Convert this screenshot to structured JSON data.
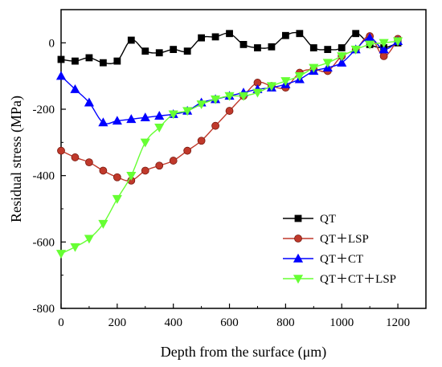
{
  "chart_data": {
    "type": "line",
    "xlabel": "Depth from the surface (μm)",
    "ylabel": "Residual stress (MPa)",
    "xlim": [
      0,
      1300
    ],
    "ylim": [
      -800,
      100
    ],
    "xticks": [
      0,
      200,
      400,
      600,
      800,
      1000,
      1200
    ],
    "yticks": [
      -800,
      -600,
      -400,
      -200,
      0
    ],
    "grid": false,
    "legend_position": "bottom-right",
    "series": [
      {
        "name": "QT",
        "color": "#000000",
        "marker": "square",
        "x": [
          0,
          50,
          100,
          150,
          200,
          250,
          300,
          350,
          400,
          450,
          500,
          550,
          600,
          650,
          700,
          750,
          800,
          850,
          900,
          950,
          1000,
          1050,
          1100,
          1150,
          1200
        ],
        "y": [
          -50,
          -55,
          -45,
          -60,
          -55,
          8,
          -25,
          -30,
          -20,
          -25,
          15,
          18,
          28,
          -5,
          -15,
          -12,
          22,
          28,
          -15,
          -20,
          -15,
          28,
          -5,
          -15,
          0
        ]
      },
      {
        "name": "QT＋LSP",
        "color": "#c0392b",
        "marker": "circle",
        "x": [
          0,
          50,
          100,
          150,
          200,
          250,
          300,
          350,
          400,
          450,
          500,
          550,
          600,
          650,
          700,
          750,
          800,
          850,
          900,
          950,
          1000,
          1050,
          1100,
          1150,
          1200
        ],
        "y": [
          -325,
          -345,
          -360,
          -385,
          -405,
          -415,
          -385,
          -370,
          -355,
          -325,
          -295,
          -250,
          -205,
          -160,
          -120,
          -130,
          -135,
          -90,
          -80,
          -85,
          -40,
          -20,
          20,
          -40,
          12
        ]
      },
      {
        "name": "QT＋CT",
        "color": "#0000ff",
        "marker": "triangle-up",
        "x": [
          0,
          50,
          100,
          150,
          200,
          250,
          300,
          350,
          400,
          450,
          500,
          550,
          600,
          650,
          700,
          750,
          800,
          850,
          900,
          950,
          1000,
          1050,
          1100,
          1150,
          1200
        ],
        "y": [
          -100,
          -140,
          -180,
          -240,
          -235,
          -230,
          -225,
          -220,
          -215,
          -205,
          -180,
          -170,
          -160,
          -150,
          -140,
          -135,
          -125,
          -110,
          -85,
          -75,
          -60,
          -20,
          15,
          -20,
          5
        ]
      },
      {
        "name": "QT＋CT＋LSP",
        "color": "#66ff33",
        "marker": "triangle-down",
        "x": [
          0,
          50,
          100,
          150,
          200,
          250,
          300,
          350,
          400,
          450,
          500,
          550,
          600,
          650,
          700,
          750,
          800,
          850,
          900,
          950,
          1000,
          1050,
          1100,
          1150,
          1200
        ],
        "y": [
          -635,
          -615,
          -590,
          -545,
          -470,
          -400,
          -300,
          -255,
          -215,
          -205,
          -185,
          -170,
          -160,
          -160,
          -150,
          -130,
          -115,
          -100,
          -75,
          -60,
          -40,
          -20,
          -5,
          0,
          5
        ]
      }
    ]
  }
}
